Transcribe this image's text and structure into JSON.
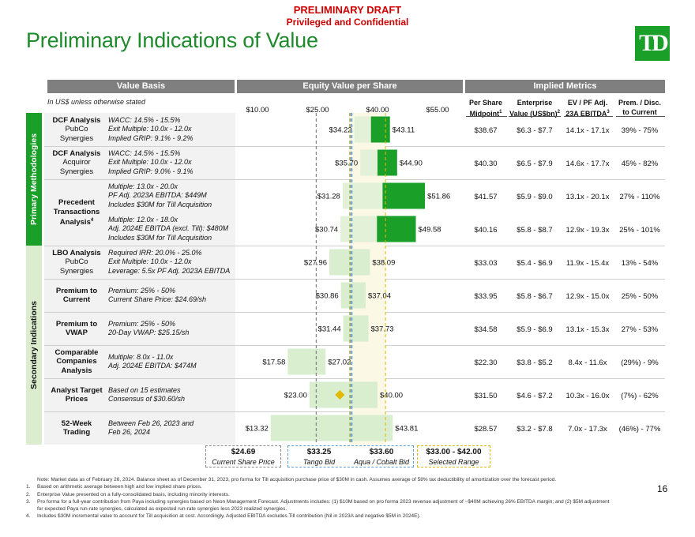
{
  "banner": {
    "line1": "PRELIMINARY DRAFT",
    "line2": "Privileged and Confidential"
  },
  "title": "Preliminary Indications of Value",
  "logo_text": "TD",
  "headers": {
    "value_basis": "Value Basis",
    "equity_value": "Equity Value per Share",
    "implied_metrics": "Implied Metrics"
  },
  "usd_note": "In US$ unless otherwise stated",
  "axis_ticks": [
    "$10.00",
    "$25.00",
    "$40.00",
    "$55.00"
  ],
  "metric_headers": [
    {
      "l1": "Per Share",
      "l2": "Midpoint",
      "sup": "1"
    },
    {
      "l1": "Enterprise",
      "l2": "Value (US$bn)",
      "sup": "2"
    },
    {
      "l1": "EV / PF Adj.",
      "l2": "23A EBITDA",
      "sup": "3"
    },
    {
      "l1": "Prem. / Disc.",
      "l2": "to Current",
      "sup": ""
    }
  ],
  "side_tags": {
    "primary": "Primary Methodologies",
    "secondary": "Secondary Indications"
  },
  "rows": [
    {
      "name": [
        "DCF Analysis",
        "PubCo",
        "Synergies"
      ],
      "desc": [
        "WACC: 14.5% - 15.5%",
        "Exit Multiple: 10.0x - 12.0x",
        "Implied GRIP: 9.1% - 9.2%"
      ],
      "low_label": "$34.22",
      "high_label": "$43.11",
      "metrics": [
        "$38.67",
        "$6.3 - $7.7",
        "14.1x - 17.1x",
        "39% - 75%"
      ]
    },
    {
      "name": [
        "DCF Analysis",
        "Acquiror",
        "Synergies"
      ],
      "desc": [
        "WACC: 14.5% - 15.5%",
        "Exit Multiple: 10.0x - 12.0x",
        "Implied GRIP: 9.0% - 9.1%"
      ],
      "low_label": "$35.70",
      "high_label": "$44.90",
      "metrics": [
        "$40.30",
        "$6.5 - $7.9",
        "14.6x - 17.7x",
        "45% - 82%"
      ]
    },
    {
      "name": [
        "Precedent",
        "Transactions",
        "Analysis"
      ],
      "name_sup": "4",
      "desc": [
        "Multiple: 13.0x - 20.0x",
        "PF Adj. 2023A EBITDA: $449M",
        "Includes $30M for Till Acquisition"
      ],
      "low_label": "$31.28",
      "high_label": "$51.86",
      "metrics": [
        "$41.57",
        "$5.9 - $9.0",
        "13.1x - 20.1x",
        "27% - 110%"
      ]
    },
    {
      "name": [],
      "desc": [
        "Multiple: 12.0x - 18.0x",
        "Adj. 2024E EBITDA (excl. Till): $480M",
        "Includes $30M for Till Acquisition"
      ],
      "low_label": "$30.74",
      "high_label": "$49.58",
      "metrics": [
        "$40.16",
        "$5.8 - $8.7",
        "12.9x - 19.3x",
        "25% - 101%"
      ]
    },
    {
      "name": [
        "LBO Analysis",
        "PubCo",
        "Synergies"
      ],
      "desc": [
        "Required IRR: 20.0% - 25.0%",
        "Exit Multiple: 10.0x - 12.0x",
        "Leverage: 5.5x PF Adj. 2023A EBITDA"
      ],
      "low_label": "$27.96",
      "high_label": "$38.09",
      "metrics": [
        "$33.03",
        "$5.4 - $6.9",
        "11.9x - 15.4x",
        "13% - 54%"
      ]
    },
    {
      "name": [
        "Premium to",
        "Current"
      ],
      "desc": [
        "Premium: 25% - 50%",
        "Current Share Price: $24.69/sh"
      ],
      "low_label": "$30.86",
      "high_label": "$37.04",
      "metrics": [
        "$33.95",
        "$5.8 - $6.7",
        "12.9x - 15.0x",
        "25% - 50%"
      ]
    },
    {
      "name": [
        "Premium to",
        "VWAP"
      ],
      "desc": [
        "Premium: 25% - 50%",
        "20-Day VWAP: $25.15/sh"
      ],
      "low_label": "$31.44",
      "high_label": "$37.73",
      "metrics": [
        "$34.58",
        "$5.9 - $6.9",
        "13.1x - 15.3x",
        "27% - 53%"
      ]
    },
    {
      "name": [
        "Comparable",
        "Companies",
        "Analysis"
      ],
      "desc": [
        "Multiple: 8.0x - 11.0x",
        "Adj. 2024E EBITDA: $474M"
      ],
      "low_label": "$17.58",
      "high_label": "$27.02",
      "metrics": [
        "$22.30",
        "$3.8 - $5.2",
        "8.4x - 11.6x",
        "(29%) - 9%"
      ]
    },
    {
      "name": [
        "Analyst Target",
        "Prices"
      ],
      "desc": [
        "Based on 15 estimates",
        "Consensus of $30.60/sh"
      ],
      "low_label": "$23.00",
      "high_label": "$40.00",
      "metrics": [
        "$31.50",
        "$4.6 - $7.2",
        "10.3x - 16.0x",
        "(7%) - 62%"
      ]
    },
    {
      "name": [
        "52-Week",
        "Trading"
      ],
      "desc": [
        "Between Feb 26, 2023 and",
        "Feb 26, 2024"
      ],
      "low_label": "$13.32",
      "high_label": "$43.81",
      "metrics": [
        "$28.57",
        "$3.2 - $7.8",
        "7.0x - 17.3x",
        "(46%) - 77%"
      ]
    }
  ],
  "chart_data": {
    "type": "floating-bar",
    "title": "Equity Value per Share",
    "xlabel": "Equity Value per Share (US$)",
    "xlim": [
      10,
      55
    ],
    "ticks": [
      10,
      25,
      40,
      55
    ],
    "categories": [
      "DCF Analysis PubCo Synergies",
      "DCF Analysis Acquiror Synergies",
      "Precedent Transactions (2023A)",
      "Precedent Transactions (2024E)",
      "LBO Analysis PubCo Synergies",
      "Premium to Current",
      "Premium to VWAP",
      "Comparable Companies Analysis",
      "Analyst Target Prices",
      "52-Week Trading"
    ],
    "low": [
      34.22,
      35.7,
      31.28,
      30.74,
      27.96,
      30.86,
      31.44,
      17.58,
      23.0,
      13.32
    ],
    "high": [
      43.11,
      44.9,
      51.86,
      49.58,
      38.09,
      37.04,
      37.73,
      27.02,
      40.0,
      43.81
    ],
    "split": [
      null,
      null,
      null,
      null,
      33.0,
      33.0,
      33.0,
      null,
      null,
      null
    ],
    "group": [
      "primary",
      "primary",
      "primary",
      "primary",
      "secondary",
      "secondary",
      "secondary",
      "secondary",
      "secondary",
      "secondary"
    ],
    "analyst_consensus": 30.6,
    "reference_lines": [
      {
        "name": "Current Share Price",
        "value": 24.69,
        "color": "#888888"
      },
      {
        "name": "Tango Bid",
        "value": 33.25,
        "color": "#5b9bd5"
      },
      {
        "name": "Aqua / Cobalt Bid",
        "value": 33.6,
        "color": "#5b9bd5"
      }
    ],
    "selected_range": [
      33.0,
      42.0
    ],
    "colors": {
      "primary": "#1a9f29",
      "secondary": "#d9edcf",
      "selected_band": "#fbf8e6",
      "diamond": "#e1b900"
    }
  },
  "summary": [
    {
      "value": "$24.69",
      "caption": "Current Share Price",
      "style": "gray"
    },
    {
      "value": "$33.25",
      "caption": "Tango Bid",
      "value2": "$33.60",
      "caption2": "Aqua / Cobalt Bid",
      "style": "blue"
    },
    {
      "value": "$33.00 - $42.00",
      "caption": "Selected Range",
      "style": "gold"
    }
  ],
  "footnotes": [
    {
      "n": "",
      "text": "Note: Market data as of February 26, 2024. Balance sheet as of December 31, 2023, pro forma for Till acquisition purchase price of $30M in cash. Assumes average of 58% tax deductibility of amortization over the forecast period."
    },
    {
      "n": "1.",
      "text": "Based on arithmetic average between high and low implied share prices."
    },
    {
      "n": "2.",
      "text": "Enterprise Value presented on a fully-consolidated basis, including minority interests."
    },
    {
      "n": "3.",
      "text": "Pro forma for a full-year contribution from Paya including synergies based on Neon Management Forecast. Adjustments includes: (1) $10M based on pro forma 2023 revenue adjustment of ~$40M achieving 26% EBITDA margin; and (2) $5M adjustment"
    },
    {
      "n": "",
      "text": "for expected Paya run-rate synergies, calculated as expected run-rate synergies less 2023 realized synergies."
    },
    {
      "n": "4.",
      "text": "Includes $30M incremental value to account for Till acquisition at cost. Accordingly, Adjusted EBITDA excludes Till contribution (Nil in 2023A and negative $5M in 2024E)."
    }
  ],
  "page_number": "16"
}
